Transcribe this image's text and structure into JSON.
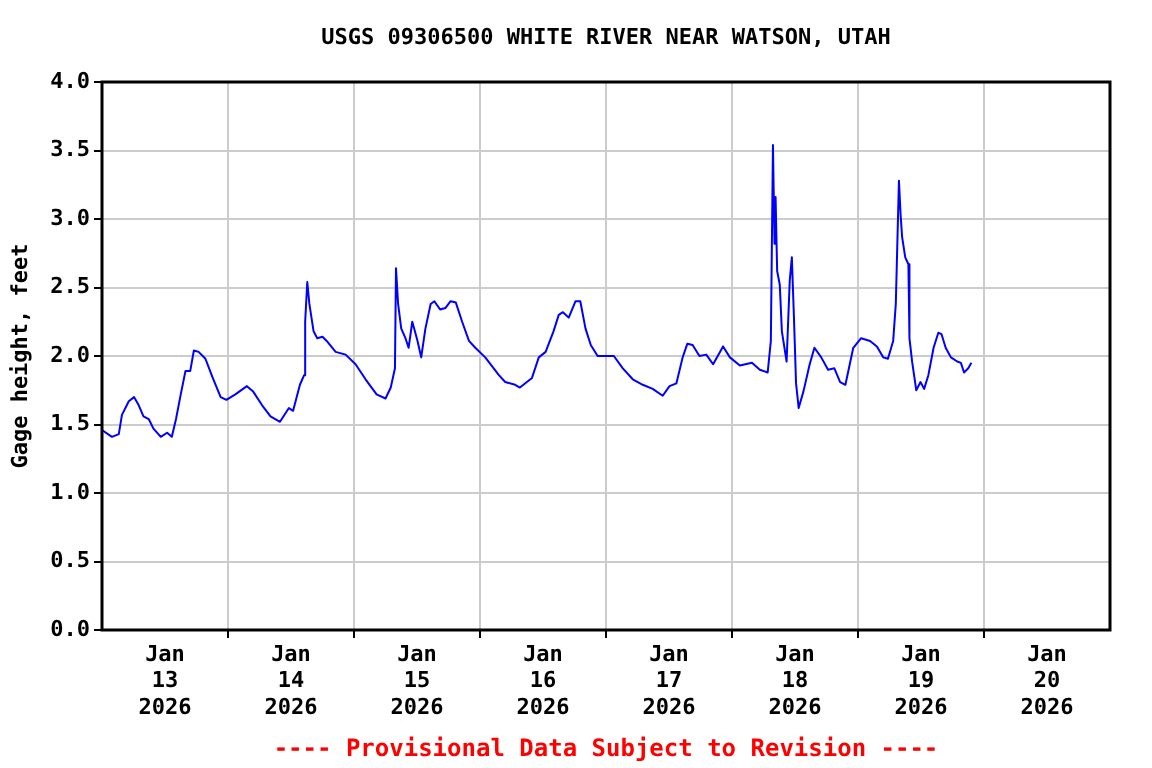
{
  "chart_data": {
    "type": "line",
    "title": "USGS 09306500 WHITE RIVER NEAR WATSON, UTAH",
    "ylabel": "Gage height, feet",
    "annotations": [
      "---- Provisional Data Subject to Revision ----"
    ],
    "xlim": [
      "2026-01-13T00:00",
      "2026-01-21T00:00"
    ],
    "xticks": [
      {
        "value": "2026-01-13T12:00",
        "label": "Jan 13 2026"
      },
      {
        "value": "2026-01-14T00:00",
        "label": null
      },
      {
        "value": "2026-01-14T12:00",
        "label": "Jan 14 2026"
      },
      {
        "value": "2026-01-15T00:00",
        "label": null
      },
      {
        "value": "2026-01-15T12:00",
        "label": "Jan 15 2026"
      },
      {
        "value": "2026-01-16T00:00",
        "label": null
      },
      {
        "value": "2026-01-16T12:00",
        "label": "Jan 16 2026"
      },
      {
        "value": "2026-01-17T00:00",
        "label": null
      },
      {
        "value": "2026-01-17T12:00",
        "label": "Jan 17 2026"
      },
      {
        "value": "2026-01-18T00:00",
        "label": null
      },
      {
        "value": "2026-01-18T12:00",
        "label": "Jan 18 2026"
      },
      {
        "value": "2026-01-19T00:00",
        "label": null
      },
      {
        "value": "2026-01-19T12:00",
        "label": "Jan 19 2026"
      },
      {
        "value": "2026-01-20T00:00",
        "label": null
      },
      {
        "value": "2026-01-20T12:00",
        "label": "Jan 20 2026"
      }
    ],
    "ylim": [
      0,
      4
    ],
    "yticks": [
      {
        "value": 0,
        "label": "0.0"
      },
      {
        "value": 0.5,
        "label": "0.5"
      },
      {
        "value": 1,
        "label": "1.0"
      },
      {
        "value": 1.5,
        "label": "1.5"
      },
      {
        "value": 2,
        "label": "2.0"
      },
      {
        "value": 2.5,
        "label": "2.5"
      },
      {
        "value": 3,
        "label": "3.0"
      },
      {
        "value": 3.5,
        "label": "3.5"
      },
      {
        "value": 4,
        "label": "4.0"
      }
    ],
    "grid": true,
    "legend": false,
    "marker": "none",
    "line_style": "solid",
    "x": [
      "2026-01-13T00:00",
      "2026-01-13T01:54",
      "2026-01-13T03:12",
      "2026-01-13T03:48",
      "2026-01-13T05:06",
      "2026-01-13T06:06",
      "2026-01-13T07:00",
      "2026-01-13T07:54",
      "2026-01-13T08:54",
      "2026-01-13T09:48",
      "2026-01-13T11:12",
      "2026-01-13T12:24",
      "2026-01-13T13:18",
      "2026-01-13T14:06",
      "2026-01-13T15:00",
      "2026-01-13T15:54",
      "2026-01-13T16:48",
      "2026-01-13T17:30",
      "2026-01-13T18:24",
      "2026-01-13T19:42",
      "2026-01-13T21:00",
      "2026-01-13T22:36",
      "2026-01-13T23:42",
      "2026-01-14T01:24",
      "2026-01-14T03:36",
      "2026-01-14T04:48",
      "2026-01-14T06:30",
      "2026-01-14T08:06",
      "2026-01-14T09:54",
      "2026-01-14T11:36",
      "2026-01-14T12:24",
      "2026-01-14T13:42",
      "2026-01-14T14:30",
      "2026-01-14T14:42",
      "2026-01-14T15:06",
      "2026-01-14T15:30",
      "2026-01-14T16:18",
      "2026-01-14T17:00",
      "2026-01-14T18:00",
      "2026-01-14T18:48",
      "2026-01-14T20:30",
      "2026-01-14T22:24",
      "2026-01-15T00:18",
      "2026-01-15T02:12",
      "2026-01-15T04:18",
      "2026-01-15T06:00",
      "2026-01-15T07:00",
      "2026-01-15T07:48",
      "2026-01-15T08:00",
      "2026-01-15T08:24",
      "2026-01-15T09:00",
      "2026-01-15T09:48",
      "2026-01-15T10:24",
      "2026-01-15T11:06",
      "2026-01-15T11:36",
      "2026-01-15T12:06",
      "2026-01-15T12:48",
      "2026-01-15T13:36",
      "2026-01-15T14:36",
      "2026-01-15T15:18",
      "2026-01-15T16:24",
      "2026-01-15T17:24",
      "2026-01-15T18:24",
      "2026-01-15T19:24",
      "2026-01-15T20:36",
      "2026-01-15T21:54",
      "2026-01-15T23:06",
      "2026-01-16T01:00",
      "2026-01-16T03:36",
      "2026-01-16T04:48",
      "2026-01-16T06:42",
      "2026-01-16T07:36",
      "2026-01-16T09:54",
      "2026-01-16T11:12",
      "2026-01-16T12:30",
      "2026-01-16T14:00",
      "2026-01-16T15:00",
      "2026-01-16T15:48",
      "2026-01-16T16:54",
      "2026-01-16T18:12",
      "2026-01-16T19:06",
      "2026-01-16T20:06",
      "2026-01-16T21:06",
      "2026-01-16T22:24",
      "2026-01-17T00:00",
      "2026-01-17T01:30",
      "2026-01-17T03:12",
      "2026-01-17T05:06",
      "2026-01-17T07:00",
      "2026-01-17T08:54",
      "2026-01-17T10:48",
      "2026-01-17T12:06",
      "2026-01-17T13:24",
      "2026-01-17T14:36",
      "2026-01-17T15:30",
      "2026-01-17T16:30",
      "2026-01-17T17:48",
      "2026-01-17T19:06",
      "2026-01-17T20:24",
      "2026-01-17T22:18",
      "2026-01-17T23:36",
      "2026-01-18T01:30",
      "2026-01-18T03:48",
      "2026-01-18T05:18",
      "2026-01-18T06:48",
      "2026-01-18T07:24",
      "2026-01-18T07:48",
      "2026-01-18T08:06",
      "2026-01-18T08:18",
      "2026-01-18T08:36",
      "2026-01-18T09:06",
      "2026-01-18T09:30",
      "2026-01-18T10:24",
      "2026-01-18T11:00",
      "2026-01-18T11:24",
      "2026-01-18T11:48",
      "2026-01-18T12:12",
      "2026-01-18T12:42",
      "2026-01-18T13:36",
      "2026-01-18T14:48",
      "2026-01-18T15:42",
      "2026-01-18T17:00",
      "2026-01-18T18:18",
      "2026-01-18T19:30",
      "2026-01-18T20:36",
      "2026-01-18T21:36",
      "2026-01-18T23:06",
      "2026-01-19T00:36",
      "2026-01-19T02:18",
      "2026-01-19T03:36",
      "2026-01-19T04:48",
      "2026-01-19T05:42",
      "2026-01-19T06:42",
      "2026-01-19T07:12",
      "2026-01-19T07:48",
      "2026-01-19T08:06",
      "2026-01-19T08:24",
      "2026-01-19T09:00",
      "2026-01-19T09:36",
      "2026-01-19T09:48",
      "2026-01-19T10:18",
      "2026-01-19T11:06",
      "2026-01-19T11:54",
      "2026-01-19T12:36",
      "2026-01-19T13:24",
      "2026-01-19T14:24",
      "2026-01-19T15:18",
      "2026-01-19T15:54",
      "2026-01-19T16:42",
      "2026-01-19T17:42",
      "2026-01-19T18:54",
      "2026-01-19T19:36",
      "2026-01-19T20:12",
      "2026-01-19T21:00",
      "2026-01-19T21:36"
    ],
    "series": [
      {
        "color": "#0000ff",
        "values": [
          1.46,
          1.41,
          1.43,
          1.57,
          1.67,
          1.7,
          1.64,
          1.56,
          1.54,
          1.47,
          1.41,
          1.44,
          1.41,
          1.54,
          1.72,
          1.89,
          1.89,
          2.04,
          2.03,
          1.98,
          1.85,
          1.7,
          1.68,
          1.72,
          1.78,
          1.74,
          1.64,
          1.56,
          1.52,
          1.62,
          1.6,
          1.79,
          1.86,
          2.25,
          2.54,
          2.38,
          2.18,
          2.13,
          2.14,
          2.11,
          2.03,
          2.01,
          1.94,
          1.83,
          1.72,
          1.69,
          1.77,
          1.91,
          2.64,
          2.38,
          2.2,
          2.13,
          2.06,
          2.25,
          2.18,
          2.11,
          1.99,
          2.2,
          2.38,
          2.4,
          2.34,
          2.35,
          2.4,
          2.39,
          2.25,
          2.11,
          2.06,
          1.99,
          1.86,
          1.81,
          1.79,
          1.77,
          1.84,
          1.99,
          2.03,
          2.18,
          2.3,
          2.32,
          2.28,
          2.4,
          2.4,
          2.2,
          2.08,
          2.0,
          2.0,
          2.0,
          1.91,
          1.83,
          1.79,
          1.76,
          1.71,
          1.78,
          1.8,
          1.99,
          2.09,
          2.08,
          2.0,
          2.01,
          1.94,
          2.07,
          1.99,
          1.93,
          1.95,
          1.9,
          1.88,
          2.11,
          3.54,
          2.82,
          3.16,
          2.62,
          2.52,
          2.18,
          1.96,
          2.55,
          2.72,
          2.28,
          1.8,
          1.62,
          1.74,
          1.94,
          2.06,
          1.99,
          1.9,
          1.91,
          1.81,
          1.79,
          2.06,
          2.13,
          2.11,
          2.07,
          1.99,
          1.98,
          2.11,
          2.38,
          3.28,
          3.04,
          2.87,
          2.72,
          2.67,
          2.13,
          1.96,
          1.75,
          1.81,
          1.76,
          1.86,
          2.06,
          2.17,
          2.16,
          2.06,
          1.99,
          1.96,
          1.95,
          1.88,
          1.91,
          1.95
        ]
      }
    ]
  }
}
